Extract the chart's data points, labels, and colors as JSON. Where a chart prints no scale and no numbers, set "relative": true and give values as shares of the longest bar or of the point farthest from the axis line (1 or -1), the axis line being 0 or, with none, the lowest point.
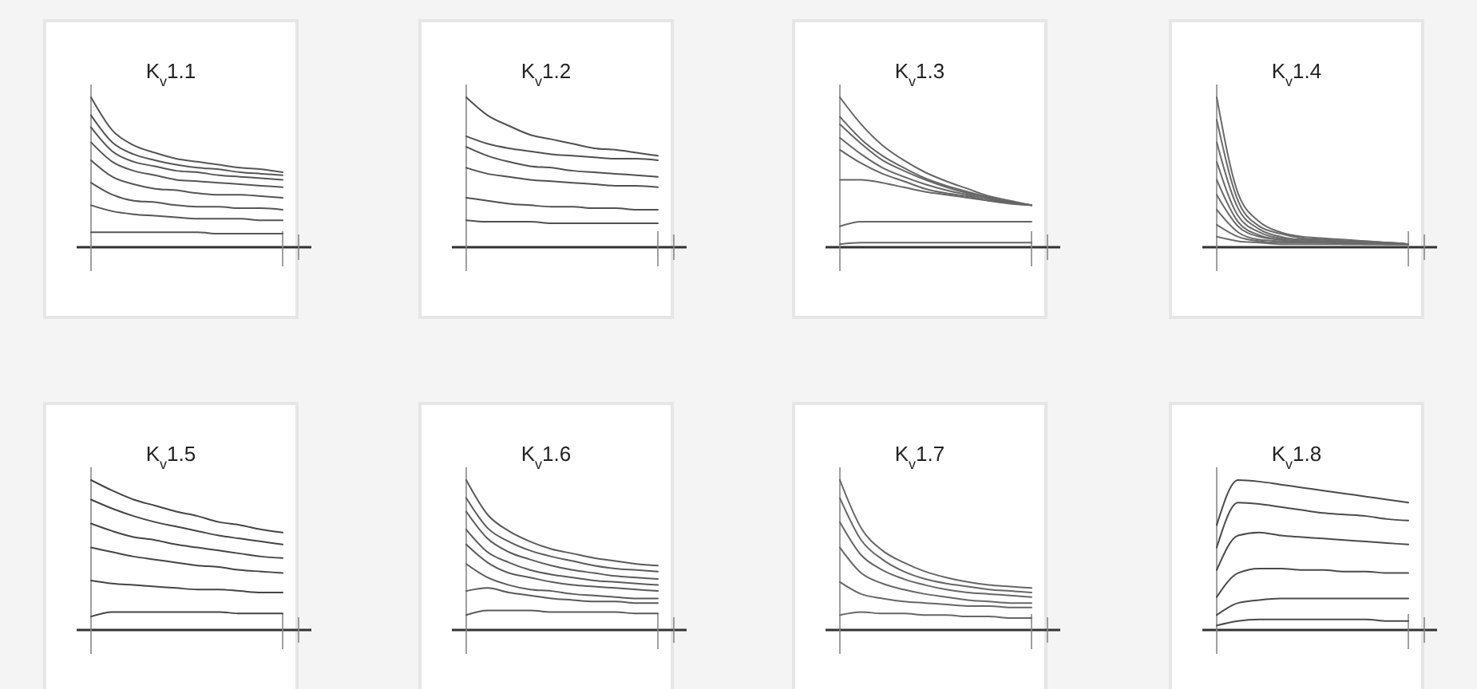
{
  "chart_data": [
    {
      "type": "line",
      "title": "K$_{v}$1.1",
      "relative": true,
      "categories": [
        null,
        null,
        null,
        null,
        null,
        null,
        null,
        null,
        null,
        null
      ],
      "series": [
        {
          "color": "#555555",
          "values": [
            1,
            0.78,
            0.68,
            0.63,
            0.59,
            0.57,
            0.55,
            0.53,
            0.52,
            0.5
          ]
        },
        {
          "color": "#555555",
          "values": [
            0.88,
            0.7,
            0.62,
            0.58,
            0.55,
            0.53,
            0.52,
            0.5,
            0.49,
            0.48
          ]
        },
        {
          "color": "#555555",
          "values": [
            0.8,
            0.64,
            0.57,
            0.54,
            0.51,
            0.5,
            0.48,
            0.47,
            0.46,
            0.45
          ]
        },
        {
          "color": "#555555",
          "values": [
            0.7,
            0.57,
            0.51,
            0.48,
            0.45,
            0.44,
            0.43,
            0.42,
            0.41,
            0.4
          ]
        },
        {
          "color": "#555555",
          "values": [
            0.58,
            0.47,
            0.42,
            0.39,
            0.38,
            0.36,
            0.35,
            0.35,
            0.34,
            0.33
          ]
        },
        {
          "color": "#555555",
          "values": [
            0.43,
            0.35,
            0.31,
            0.3,
            0.28,
            0.27,
            0.27,
            0.26,
            0.26,
            0.25
          ]
        },
        {
          "color": "#555555",
          "values": [
            0.28,
            0.24,
            0.22,
            0.21,
            0.2,
            0.19,
            0.19,
            0.19,
            0.18,
            0.18
          ]
        },
        {
          "color": "#555555",
          "values": [
            0.1,
            0.1,
            0.1,
            0.1,
            0.1,
            0.1,
            0.09,
            0.09,
            0.09,
            0.09
          ]
        }
      ]
    },
    {
      "type": "line",
      "title": "K$_{v}$1.2",
      "relative": true,
      "categories": [
        null,
        null,
        null,
        null,
        null,
        null,
        null,
        null,
        null,
        null
      ],
      "series": [
        {
          "color": "#505050",
          "values": [
            1,
            0.88,
            0.81,
            0.75,
            0.72,
            0.69,
            0.66,
            0.65,
            0.63,
            0.61
          ]
        },
        {
          "color": "#505050",
          "values": [
            0.74,
            0.69,
            0.66,
            0.64,
            0.62,
            0.61,
            0.6,
            0.59,
            0.59,
            0.58
          ]
        },
        {
          "color": "#505050",
          "values": [
            0.67,
            0.61,
            0.57,
            0.54,
            0.53,
            0.51,
            0.5,
            0.49,
            0.48,
            0.47
          ]
        },
        {
          "color": "#505050",
          "values": [
            0.53,
            0.49,
            0.47,
            0.45,
            0.44,
            0.43,
            0.42,
            0.41,
            0.41,
            0.4
          ]
        },
        {
          "color": "#505050",
          "values": [
            0.33,
            0.31,
            0.29,
            0.28,
            0.27,
            0.27,
            0.26,
            0.26,
            0.25,
            0.25
          ]
        },
        {
          "color": "#505050",
          "values": [
            0.18,
            0.17,
            0.17,
            0.17,
            0.16,
            0.16,
            0.16,
            0.16,
            0.16,
            0.16
          ]
        }
      ]
    },
    {
      "type": "line",
      "title": "K$_{v}$1.3",
      "relative": true,
      "categories": [
        null,
        null,
        null,
        null,
        null,
        null,
        null,
        null,
        null,
        null
      ],
      "series": [
        {
          "color": "#666666",
          "values": [
            1,
            0.82,
            0.68,
            0.58,
            0.5,
            0.44,
            0.39,
            0.34,
            0.31,
            0.28
          ]
        },
        {
          "color": "#666666",
          "values": [
            0.87,
            0.72,
            0.61,
            0.53,
            0.46,
            0.41,
            0.37,
            0.33,
            0.3,
            0.28
          ]
        },
        {
          "color": "#666666",
          "values": [
            0.82,
            0.69,
            0.58,
            0.51,
            0.45,
            0.4,
            0.36,
            0.33,
            0.3,
            0.28
          ]
        },
        {
          "color": "#666666",
          "values": [
            0.73,
            0.62,
            0.53,
            0.47,
            0.42,
            0.38,
            0.35,
            0.32,
            0.3,
            0.28
          ]
        },
        {
          "color": "#666666",
          "values": [
            0.65,
            0.56,
            0.49,
            0.44,
            0.39,
            0.36,
            0.34,
            0.31,
            0.29,
            0.28
          ]
        },
        {
          "color": "#666666",
          "values": [
            0.45,
            0.45,
            0.43,
            0.4,
            0.37,
            0.35,
            0.33,
            0.31,
            0.3,
            0.28
          ]
        },
        {
          "color": "#666666",
          "values": [
            0.14,
            0.17,
            0.17,
            0.17,
            0.17,
            0.17,
            0.17,
            0.17,
            0.17,
            0.17
          ]
        },
        {
          "color": "#666666",
          "values": [
            0.02,
            0.03,
            0.03,
            0.03,
            0.03,
            0.03,
            0.03,
            0.03,
            0.03,
            0.03
          ]
        }
      ]
    },
    {
      "type": "line",
      "title": "K$_{v}$1.4",
      "relative": true,
      "categories": [
        null,
        null,
        null,
        null,
        null,
        null,
        null,
        null,
        null,
        null
      ],
      "series": [
        {
          "color": "#6a6a6a",
          "values": [
            1,
            0.36,
            0.17,
            0.1,
            0.07,
            0.06,
            0.05,
            0.04,
            0.03,
            0.02
          ]
        },
        {
          "color": "#6a6a6a",
          "values": [
            0.85,
            0.31,
            0.14,
            0.09,
            0.06,
            0.05,
            0.04,
            0.04,
            0.03,
            0.02
          ]
        },
        {
          "color": "#6a6a6a",
          "values": [
            0.7,
            0.26,
            0.12,
            0.07,
            0.05,
            0.05,
            0.04,
            0.03,
            0.03,
            0.02
          ]
        },
        {
          "color": "#6a6a6a",
          "values": [
            0.57,
            0.21,
            0.1,
            0.06,
            0.05,
            0.04,
            0.04,
            0.03,
            0.03,
            0.02
          ]
        },
        {
          "color": "#6a6a6a",
          "values": [
            0.45,
            0.17,
            0.08,
            0.05,
            0.04,
            0.04,
            0.03,
            0.03,
            0.02,
            0.02
          ]
        },
        {
          "color": "#6a6a6a",
          "values": [
            0.35,
            0.14,
            0.07,
            0.05,
            0.04,
            0.03,
            0.03,
            0.03,
            0.02,
            0.02
          ]
        },
        {
          "color": "#6a6a6a",
          "values": [
            0.25,
            0.1,
            0.05,
            0.04,
            0.03,
            0.03,
            0.03,
            0.02,
            0.02,
            0.02
          ]
        },
        {
          "color": "#6a6a6a",
          "values": [
            0.15,
            0.07,
            0.04,
            0.03,
            0.03,
            0.03,
            0.02,
            0.02,
            0.02,
            0.02
          ]
        },
        {
          "color": "#6a6a6a",
          "values": [
            0.07,
            0.04,
            0.03,
            0.02,
            0.02,
            0.02,
            0.02,
            0.02,
            0.02,
            0.02
          ]
        }
      ]
    },
    {
      "type": "line",
      "title": "K$_{v}$1.5",
      "relative": true,
      "categories": [
        null,
        null,
        null,
        null,
        null,
        null,
        null,
        null,
        null,
        null
      ],
      "series": [
        {
          "color": "#444444",
          "values": [
            1,
            0.93,
            0.87,
            0.83,
            0.79,
            0.76,
            0.72,
            0.7,
            0.67,
            0.65
          ]
        },
        {
          "color": "#444444",
          "values": [
            0.87,
            0.81,
            0.76,
            0.72,
            0.69,
            0.66,
            0.63,
            0.61,
            0.59,
            0.57
          ]
        },
        {
          "color": "#444444",
          "values": [
            0.71,
            0.66,
            0.62,
            0.6,
            0.57,
            0.55,
            0.53,
            0.51,
            0.49,
            0.48
          ]
        },
        {
          "color": "#444444",
          "values": [
            0.55,
            0.52,
            0.49,
            0.47,
            0.45,
            0.43,
            0.42,
            0.4,
            0.39,
            0.38
          ]
        },
        {
          "color": "#444444",
          "values": [
            0.33,
            0.31,
            0.3,
            0.29,
            0.28,
            0.27,
            0.27,
            0.26,
            0.25,
            0.25
          ]
        },
        {
          "color": "#444444",
          "values": [
            0.09,
            0.12,
            0.12,
            0.12,
            0.12,
            0.12,
            0.12,
            0.11,
            0.11,
            0.11
          ]
        }
      ]
    },
    {
      "type": "line",
      "title": "K$_{v}$1.6",
      "relative": true,
      "categories": [
        null,
        null,
        null,
        null,
        null,
        null,
        null,
        null,
        null,
        null
      ],
      "series": [
        {
          "color": "#5a5a5a",
          "values": [
            1,
            0.77,
            0.66,
            0.59,
            0.54,
            0.51,
            0.48,
            0.46,
            0.44,
            0.43
          ]
        },
        {
          "color": "#5a5a5a",
          "values": [
            0.88,
            0.68,
            0.59,
            0.53,
            0.49,
            0.46,
            0.43,
            0.41,
            0.4,
            0.39
          ]
        },
        {
          "color": "#5a5a5a",
          "values": [
            0.79,
            0.61,
            0.52,
            0.47,
            0.43,
            0.4,
            0.38,
            0.36,
            0.35,
            0.34
          ]
        },
        {
          "color": "#5a5a5a",
          "values": [
            0.67,
            0.52,
            0.45,
            0.4,
            0.37,
            0.35,
            0.33,
            0.32,
            0.31,
            0.3
          ]
        },
        {
          "color": "#5a5a5a",
          "values": [
            0.57,
            0.45,
            0.38,
            0.35,
            0.32,
            0.3,
            0.29,
            0.28,
            0.27,
            0.26
          ]
        },
        {
          "color": "#5a5a5a",
          "values": [
            0.44,
            0.35,
            0.3,
            0.27,
            0.26,
            0.24,
            0.23,
            0.22,
            0.21,
            0.21
          ]
        },
        {
          "color": "#5a5a5a",
          "values": [
            0.26,
            0.28,
            0.25,
            0.23,
            0.21,
            0.2,
            0.19,
            0.19,
            0.18,
            0.18
          ]
        },
        {
          "color": "#5a5a5a",
          "values": [
            0.1,
            0.13,
            0.13,
            0.13,
            0.12,
            0.12,
            0.12,
            0.12,
            0.11,
            0.11
          ]
        }
      ]
    },
    {
      "type": "line",
      "title": "K$_{v}$1.7",
      "relative": true,
      "categories": [
        null,
        null,
        null,
        null,
        null,
        null,
        null,
        null,
        null,
        null
      ],
      "series": [
        {
          "color": "#666666",
          "values": [
            1,
            0.68,
            0.53,
            0.45,
            0.39,
            0.35,
            0.32,
            0.3,
            0.29,
            0.28
          ]
        },
        {
          "color": "#666666",
          "values": [
            0.88,
            0.6,
            0.47,
            0.39,
            0.34,
            0.31,
            0.29,
            0.27,
            0.26,
            0.25
          ]
        },
        {
          "color": "#666666",
          "values": [
            0.72,
            0.5,
            0.4,
            0.34,
            0.3,
            0.27,
            0.25,
            0.24,
            0.23,
            0.22
          ]
        },
        {
          "color": "#666666",
          "values": [
            0.55,
            0.38,
            0.31,
            0.27,
            0.24,
            0.22,
            0.2,
            0.19,
            0.18,
            0.18
          ]
        },
        {
          "color": "#666666",
          "values": [
            0.32,
            0.24,
            0.21,
            0.19,
            0.18,
            0.17,
            0.16,
            0.16,
            0.15,
            0.15
          ]
        },
        {
          "color": "#666666",
          "values": [
            0.1,
            0.12,
            0.11,
            0.11,
            0.1,
            0.1,
            0.09,
            0.09,
            0.08,
            0.08
          ]
        }
      ]
    },
    {
      "type": "line",
      "title": "K$_{v}$1.8",
      "relative": true,
      "categories": [
        null,
        null,
        null,
        null,
        null,
        null,
        null,
        null,
        null,
        null
      ],
      "series": [
        {
          "color": "#4a4a4a",
          "values": [
            0.7,
            1,
            0.99,
            0.97,
            0.95,
            0.93,
            0.91,
            0.89,
            0.87,
            0.85
          ]
        },
        {
          "color": "#4a4a4a",
          "values": [
            0.55,
            0.85,
            0.84,
            0.82,
            0.8,
            0.78,
            0.77,
            0.76,
            0.74,
            0.73
          ]
        },
        {
          "color": "#4a4a4a",
          "values": [
            0.4,
            0.63,
            0.65,
            0.63,
            0.62,
            0.61,
            0.6,
            0.59,
            0.58,
            0.57
          ]
        },
        {
          "color": "#4a4a4a",
          "values": [
            0.22,
            0.38,
            0.41,
            0.41,
            0.4,
            0.4,
            0.39,
            0.39,
            0.38,
            0.38
          ]
        },
        {
          "color": "#4a4a4a",
          "values": [
            0.1,
            0.18,
            0.2,
            0.21,
            0.21,
            0.21,
            0.21,
            0.21,
            0.21,
            0.21
          ]
        },
        {
          "color": "#4a4a4a",
          "values": [
            0.03,
            0.06,
            0.07,
            0.07,
            0.07,
            0.07,
            0.07,
            0.07,
            0.06,
            0.06
          ]
        }
      ]
    }
  ]
}
